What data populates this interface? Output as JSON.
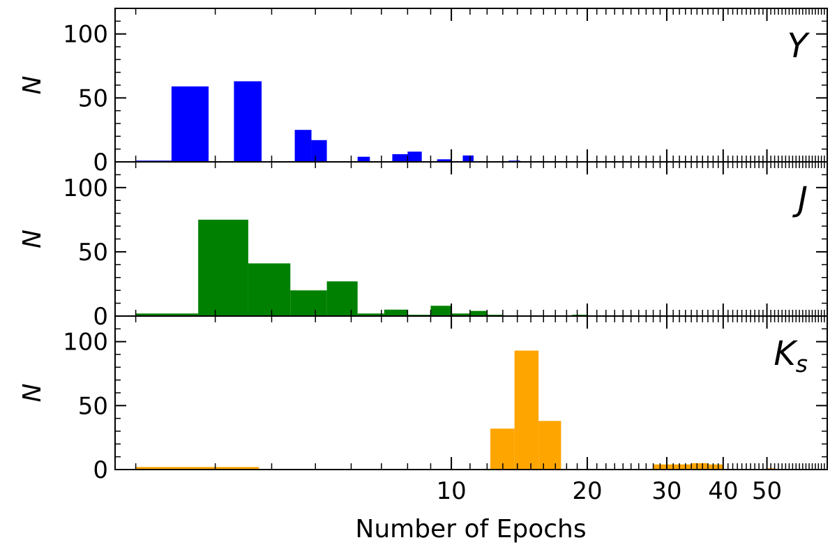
{
  "chart_data": {
    "type": "bar",
    "subtype": "histogram",
    "xscale": "log",
    "xlim": [
      1.8,
      68
    ],
    "xlabel": "Number of Epochs",
    "x_ticks": [
      10,
      20,
      30,
      40,
      50
    ],
    "x_tick_labels": [
      "10",
      "20",
      "30",
      "40",
      "50"
    ],
    "shared_x": true,
    "grid": false,
    "panels": [
      {
        "name": "Y",
        "band_label": "Y",
        "band_sub": "",
        "ylabel": "N",
        "ylim": [
          0,
          120
        ],
        "y_ticks": [
          0,
          50,
          100
        ],
        "y_tick_labels": [
          "0",
          "50",
          "100"
        ],
        "color": "#0000ff",
        "bins": [
          {
            "x0": 2.0,
            "x1": 2.4,
            "value": 1
          },
          {
            "x0": 2.4,
            "x1": 2.9,
            "value": 59
          },
          {
            "x0": 3.3,
            "x1": 3.8,
            "value": 63
          },
          {
            "x0": 4.5,
            "x1": 4.9,
            "value": 25
          },
          {
            "x0": 4.9,
            "x1": 5.3,
            "value": 17
          },
          {
            "x0": 6.2,
            "x1": 6.6,
            "value": 4
          },
          {
            "x0": 7.4,
            "x1": 8.0,
            "value": 6
          },
          {
            "x0": 8.0,
            "x1": 8.6,
            "value": 8
          },
          {
            "x0": 9.3,
            "x1": 10.0,
            "value": 2
          },
          {
            "x0": 10.6,
            "x1": 11.2,
            "value": 5
          },
          {
            "x0": 13.4,
            "x1": 14.2,
            "value": 1
          }
        ]
      },
      {
        "name": "J",
        "band_label": "J",
        "band_sub": "",
        "ylabel": "N",
        "ylim": [
          0,
          120
        ],
        "y_ticks": [
          0,
          50,
          100
        ],
        "y_tick_labels": [
          "0",
          "50",
          "100"
        ],
        "color": "#008000",
        "bins": [
          {
            "x0": 2.0,
            "x1": 2.75,
            "value": 2
          },
          {
            "x0": 2.75,
            "x1": 3.55,
            "value": 75
          },
          {
            "x0": 3.55,
            "x1": 4.4,
            "value": 41
          },
          {
            "x0": 4.4,
            "x1": 5.3,
            "value": 20
          },
          {
            "x0": 5.3,
            "x1": 6.2,
            "value": 27
          },
          {
            "x0": 6.2,
            "x1": 7.1,
            "value": 2
          },
          {
            "x0": 7.1,
            "x1": 8.0,
            "value": 5
          },
          {
            "x0": 8.0,
            "x1": 9.0,
            "value": 1
          },
          {
            "x0": 9.0,
            "x1": 10.0,
            "value": 8
          },
          {
            "x0": 10.0,
            "x1": 11.0,
            "value": 2
          },
          {
            "x0": 11.0,
            "x1": 12.0,
            "value": 4
          },
          {
            "x0": 12.0,
            "x1": 13.0,
            "value": 1
          },
          {
            "x0": 18.5,
            "x1": 20.0,
            "value": 1
          }
        ]
      },
      {
        "name": "Ks",
        "band_label": "K",
        "band_sub": "s",
        "ylabel": "N",
        "ylim": [
          0,
          120
        ],
        "y_ticks": [
          0,
          50,
          100
        ],
        "y_tick_labels": [
          "0",
          "50",
          "100"
        ],
        "color": "#ffa500",
        "bins": [
          {
            "x0": 2.0,
            "x1": 2.75,
            "value": 2
          },
          {
            "x0": 2.75,
            "x1": 3.75,
            "value": 2
          },
          {
            "x0": 3.75,
            "x1": 10.0,
            "value": 0.5
          },
          {
            "x0": 12.2,
            "x1": 13.8,
            "value": 32
          },
          {
            "x0": 13.8,
            "x1": 15.6,
            "value": 93
          },
          {
            "x0": 15.6,
            "x1": 17.5,
            "value": 38
          },
          {
            "x0": 17.5,
            "x1": 28.0,
            "value": 0.5
          },
          {
            "x0": 28.0,
            "x1": 31.0,
            "value": 4
          },
          {
            "x0": 31.0,
            "x1": 34.0,
            "value": 4
          },
          {
            "x0": 34.0,
            "x1": 37.0,
            "value": 5
          },
          {
            "x0": 37.0,
            "x1": 40.0,
            "value": 4
          },
          {
            "x0": 50.0,
            "x1": 52.0,
            "value": 1
          }
        ]
      }
    ]
  }
}
